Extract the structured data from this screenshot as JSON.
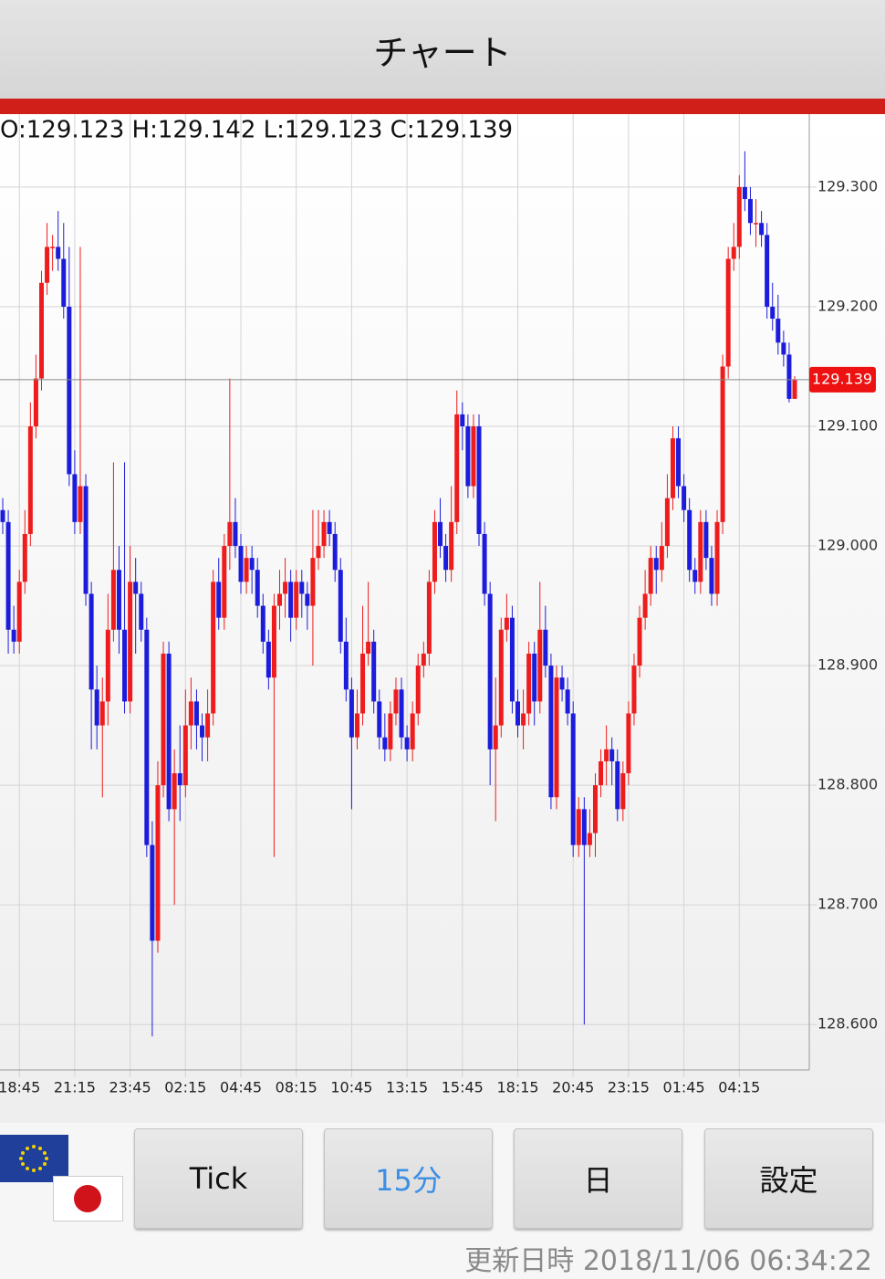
{
  "header": {
    "title": "チャート"
  },
  "chart_data": {
    "type": "candlestick",
    "ohlc_label": "O:129.123 H:129.142 L:129.123 C:129.139",
    "up_color": "#ee1c1c",
    "down_color": "#1c1cdc",
    "current_price": 129.139,
    "ylim": [
      128.562,
      129.361
    ],
    "yticks": [
      {
        "value": 128.6,
        "label": "128.600"
      },
      {
        "value": 128.7,
        "label": "128.700"
      },
      {
        "value": 128.8,
        "label": "128.800"
      },
      {
        "value": 128.9,
        "label": "128.900"
      },
      {
        "value": 129.0,
        "label": "129.000"
      },
      {
        "value": 129.1,
        "label": "129.100"
      },
      {
        "value": 129.2,
        "label": "129.200"
      },
      {
        "value": 129.3,
        "label": "129.300"
      }
    ],
    "xticks": [
      {
        "value": 3,
        "label": "18:45"
      },
      {
        "value": 13,
        "label": "21:15"
      },
      {
        "value": 23,
        "label": "23:45"
      },
      {
        "value": 33,
        "label": "02:15"
      },
      {
        "value": 43,
        "label": "04:45"
      },
      {
        "value": 53,
        "label": "08:15"
      },
      {
        "value": 63,
        "label": "10:45"
      },
      {
        "value": 73,
        "label": "13:15"
      },
      {
        "value": 83,
        "label": "15:45"
      },
      {
        "value": 93,
        "label": "18:15"
      },
      {
        "value": 103,
        "label": "20:45"
      },
      {
        "value": 113,
        "label": "23:15"
      },
      {
        "value": 123,
        "label": "01:45"
      },
      {
        "value": 133,
        "label": "04:15"
      }
    ],
    "grid": true,
    "ohlc": [
      [
        129.03,
        129.04,
        129.01,
        129.02
      ],
      [
        129.02,
        129.03,
        128.91,
        128.93
      ],
      [
        128.93,
        128.95,
        128.91,
        128.92
      ],
      [
        128.92,
        128.98,
        128.91,
        128.97
      ],
      [
        128.97,
        129.03,
        128.96,
        129.01
      ],
      [
        129.01,
        129.12,
        129.0,
        129.1
      ],
      [
        129.1,
        129.16,
        129.09,
        129.14
      ],
      [
        129.14,
        129.23,
        129.13,
        129.22
      ],
      [
        129.22,
        129.27,
        129.21,
        129.25
      ],
      [
        129.25,
        129.26,
        129.23,
        129.25
      ],
      [
        129.25,
        129.28,
        129.23,
        129.24
      ],
      [
        129.24,
        129.27,
        129.19,
        129.2
      ],
      [
        129.2,
        129.25,
        129.05,
        129.06
      ],
      [
        129.06,
        129.08,
        129.01,
        129.02
      ],
      [
        129.02,
        129.25,
        129.01,
        129.05
      ],
      [
        129.05,
        129.06,
        128.95,
        128.96
      ],
      [
        128.96,
        128.97,
        128.83,
        128.88
      ],
      [
        128.88,
        128.9,
        128.83,
        128.85
      ],
      [
        128.85,
        128.89,
        128.79,
        128.87
      ],
      [
        128.87,
        128.96,
        128.85,
        128.93
      ],
      [
        128.93,
        129.07,
        128.92,
        128.98
      ],
      [
        128.98,
        129.0,
        128.91,
        128.93
      ],
      [
        128.93,
        129.07,
        128.86,
        128.87
      ],
      [
        128.87,
        129.0,
        128.86,
        128.97
      ],
      [
        128.97,
        128.99,
        128.91,
        128.96
      ],
      [
        128.96,
        128.97,
        128.92,
        128.93
      ],
      [
        128.93,
        128.94,
        128.74,
        128.75
      ],
      [
        128.75,
        128.77,
        128.59,
        128.67
      ],
      [
        128.67,
        128.82,
        128.66,
        128.8
      ],
      [
        128.8,
        128.92,
        128.79,
        128.91
      ],
      [
        128.91,
        128.92,
        128.77,
        128.78
      ],
      [
        128.78,
        128.83,
        128.7,
        128.81
      ],
      [
        128.81,
        128.85,
        128.77,
        128.8
      ],
      [
        128.8,
        128.88,
        128.79,
        128.85
      ],
      [
        128.85,
        128.89,
        128.83,
        128.87
      ],
      [
        128.87,
        128.88,
        128.83,
        128.85
      ],
      [
        128.85,
        128.86,
        128.82,
        128.84
      ],
      [
        128.84,
        128.88,
        128.82,
        128.86
      ],
      [
        128.86,
        128.98,
        128.85,
        128.97
      ],
      [
        128.97,
        128.99,
        128.93,
        128.94
      ],
      [
        128.94,
        129.01,
        128.93,
        129.0
      ],
      [
        129.0,
        129.14,
        128.98,
        129.02
      ],
      [
        129.02,
        129.04,
        128.99,
        129.0
      ],
      [
        129.0,
        129.01,
        128.96,
        128.97
      ],
      [
        128.97,
        129.0,
        128.96,
        128.99
      ],
      [
        128.99,
        129.0,
        128.96,
        128.98
      ],
      [
        128.98,
        128.99,
        128.94,
        128.95
      ],
      [
        128.95,
        128.96,
        128.91,
        128.92
      ],
      [
        128.92,
        128.93,
        128.88,
        128.89
      ],
      [
        128.89,
        128.96,
        128.74,
        128.95
      ],
      [
        128.95,
        128.98,
        128.93,
        128.96
      ],
      [
        128.96,
        128.99,
        128.94,
        128.97
      ],
      [
        128.97,
        128.98,
        128.92,
        128.94
      ],
      [
        128.94,
        128.98,
        128.93,
        128.97
      ],
      [
        128.97,
        128.98,
        128.94,
        128.96
      ],
      [
        128.96,
        128.97,
        128.93,
        128.95
      ],
      [
        128.95,
        129.03,
        128.9,
        128.99
      ],
      [
        128.99,
        129.03,
        128.98,
        129.0
      ],
      [
        129.0,
        129.03,
        128.99,
        129.02
      ],
      [
        129.02,
        129.03,
        129.0,
        129.01
      ],
      [
        129.01,
        129.02,
        128.97,
        128.98
      ],
      [
        128.98,
        128.99,
        128.91,
        128.92
      ],
      [
        128.92,
        128.94,
        128.87,
        128.88
      ],
      [
        128.88,
        128.89,
        128.78,
        128.84
      ],
      [
        128.84,
        128.88,
        128.83,
        128.86
      ],
      [
        128.86,
        128.95,
        128.85,
        128.91
      ],
      [
        128.91,
        128.97,
        128.9,
        128.92
      ],
      [
        128.92,
        128.93,
        128.86,
        128.87
      ],
      [
        128.87,
        128.88,
        128.83,
        128.84
      ],
      [
        128.84,
        128.86,
        128.82,
        128.83
      ],
      [
        128.83,
        128.87,
        128.82,
        128.86
      ],
      [
        128.86,
        128.89,
        128.85,
        128.88
      ],
      [
        128.88,
        128.89,
        128.83,
        128.84
      ],
      [
        128.84,
        128.85,
        128.82,
        128.83
      ],
      [
        128.83,
        128.87,
        128.82,
        128.86
      ],
      [
        128.86,
        128.91,
        128.85,
        128.9
      ],
      [
        128.9,
        128.92,
        128.89,
        128.91
      ],
      [
        128.91,
        128.98,
        128.9,
        128.97
      ],
      [
        128.97,
        129.03,
        128.96,
        129.02
      ],
      [
        129.02,
        129.04,
        128.99,
        129.0
      ],
      [
        129.0,
        129.01,
        128.97,
        128.98
      ],
      [
        128.98,
        129.05,
        128.97,
        129.02
      ],
      [
        129.02,
        129.13,
        129.01,
        129.11
      ],
      [
        129.11,
        129.12,
        129.08,
        129.1
      ],
      [
        129.1,
        129.11,
        129.04,
        129.05
      ],
      [
        129.05,
        129.11,
        129.04,
        129.1
      ],
      [
        129.1,
        129.11,
        129.0,
        129.01
      ],
      [
        129.01,
        129.02,
        128.95,
        128.96
      ],
      [
        128.96,
        128.97,
        128.8,
        128.83
      ],
      [
        128.83,
        128.89,
        128.77,
        128.85
      ],
      [
        128.85,
        128.94,
        128.84,
        128.93
      ],
      [
        128.93,
        128.96,
        128.92,
        128.94
      ],
      [
        128.94,
        128.95,
        128.86,
        128.87
      ],
      [
        128.87,
        128.88,
        128.84,
        128.85
      ],
      [
        128.85,
        128.88,
        128.83,
        128.86
      ],
      [
        128.86,
        128.92,
        128.85,
        128.91
      ],
      [
        128.91,
        128.92,
        128.85,
        128.87
      ],
      [
        128.87,
        128.97,
        128.86,
        128.93
      ],
      [
        128.93,
        128.95,
        128.89,
        128.9
      ],
      [
        128.9,
        128.91,
        128.78,
        128.79
      ],
      [
        128.79,
        128.9,
        128.78,
        128.89
      ],
      [
        128.89,
        128.9,
        128.87,
        128.88
      ],
      [
        128.88,
        128.89,
        128.85,
        128.86
      ],
      [
        128.86,
        128.87,
        128.74,
        128.75
      ],
      [
        128.75,
        128.79,
        128.74,
        128.78
      ],
      [
        128.78,
        128.79,
        128.6,
        128.75
      ],
      [
        128.75,
        128.78,
        128.74,
        128.76
      ],
      [
        128.76,
        128.81,
        128.74,
        128.8
      ],
      [
        128.8,
        128.83,
        128.79,
        128.82
      ],
      [
        128.82,
        128.85,
        128.8,
        128.83
      ],
      [
        128.83,
        128.84,
        128.8,
        128.82
      ],
      [
        128.82,
        128.83,
        128.77,
        128.78
      ],
      [
        128.78,
        128.82,
        128.77,
        128.81
      ],
      [
        128.81,
        128.87,
        128.8,
        128.86
      ],
      [
        128.86,
        128.91,
        128.85,
        128.9
      ],
      [
        128.9,
        128.95,
        128.89,
        128.94
      ],
      [
        128.94,
        128.98,
        128.93,
        128.96
      ],
      [
        128.96,
        129.0,
        128.95,
        128.99
      ],
      [
        128.99,
        129.0,
        128.96,
        128.98
      ],
      [
        128.98,
        129.02,
        128.97,
        129.0
      ],
      [
        129.0,
        129.06,
        128.99,
        129.04
      ],
      [
        129.04,
        129.1,
        129.03,
        129.09
      ],
      [
        129.09,
        129.1,
        129.04,
        129.05
      ],
      [
        129.05,
        129.06,
        129.02,
        129.03
      ],
      [
        129.03,
        129.04,
        128.97,
        128.98
      ],
      [
        128.98,
        128.99,
        128.96,
        128.97
      ],
      [
        128.97,
        129.03,
        128.96,
        129.02
      ],
      [
        129.02,
        129.03,
        128.98,
        128.99
      ],
      [
        128.99,
        129.0,
        128.95,
        128.96
      ],
      [
        128.96,
        129.03,
        128.95,
        129.02
      ],
      [
        129.02,
        129.16,
        129.01,
        129.15
      ],
      [
        129.15,
        129.25,
        129.14,
        129.24
      ],
      [
        129.24,
        129.27,
        129.23,
        129.25
      ],
      [
        129.25,
        129.31,
        129.24,
        129.3
      ],
      [
        129.3,
        129.33,
        129.28,
        129.29
      ],
      [
        129.29,
        129.3,
        129.26,
        129.27
      ],
      [
        129.27,
        129.29,
        129.25,
        129.27
      ],
      [
        129.27,
        129.28,
        129.25,
        129.26
      ],
      [
        129.26,
        129.27,
        129.19,
        129.2
      ],
      [
        129.2,
        129.22,
        129.18,
        129.19
      ],
      [
        129.19,
        129.21,
        129.16,
        129.17
      ],
      [
        129.17,
        129.18,
        129.15,
        129.16
      ],
      [
        129.16,
        129.17,
        129.12,
        129.123
      ],
      [
        129.123,
        129.142,
        129.123,
        129.139
      ]
    ]
  },
  "buttons": [
    "Tick",
    "15分",
    "日",
    "設定"
  ],
  "selected_button": 1,
  "footer": {
    "updated": "更新日時 2018/11/06 06:34:22"
  }
}
